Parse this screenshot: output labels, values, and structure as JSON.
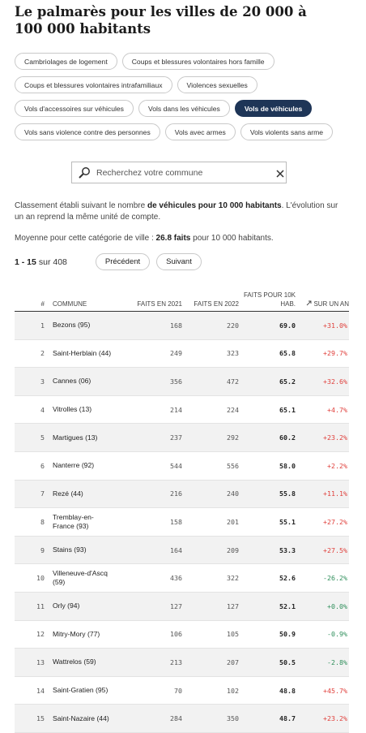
{
  "header": {
    "title": "Le palmarès pour les villes de 20 000 à 100 000 habitants"
  },
  "filters": [
    [
      {
        "label": "Cambriolages de logement",
        "active": false
      },
      {
        "label": "Coups et blessures volontaires hors famille",
        "active": false
      }
    ],
    [
      {
        "label": "Coups et blessures volontaires intrafamiliaux",
        "active": false
      },
      {
        "label": "Violences sexuelles",
        "active": false
      }
    ],
    [
      {
        "label": "Vols d'accessoires sur véhicules",
        "active": false
      },
      {
        "label": "Vols dans les véhicules",
        "active": false
      },
      {
        "label": "Vols de véhicules",
        "active": true
      }
    ],
    [
      {
        "label": "Vols sans violence contre des personnes",
        "active": false
      },
      {
        "label": "Vols avec armes",
        "active": false
      },
      {
        "label": "Vols violents sans arme",
        "active": false
      }
    ]
  ],
  "search": {
    "placeholder": "Recherchez votre commune"
  },
  "intro": [
    {
      "text": "Classement établi suivant le nombre ",
      "bold": false
    },
    {
      "text": "de véhicules pour 10 000 habitants",
      "bold": true
    },
    {
      "text": ". L'évolution sur un an reprend la même unité de compte.",
      "bold": false
    }
  ],
  "average": [
    {
      "text": "Moyenne pour cette catégorie de ville : ",
      "bold": false
    },
    {
      "text": "26.8 faits",
      "bold": true
    },
    {
      "text": " pour 10 000 habitants.",
      "bold": false
    }
  ],
  "pagination": {
    "range": "1 - 15",
    "total": "sur 408",
    "prev": "Précédent",
    "next": "Suivant"
  },
  "table": {
    "columns": [
      "#",
      "COMMUNE",
      "FAITS EN 2021",
      "FAITS EN 2022",
      "FAITS POUR 10K HAB.",
      "SUR UN AN"
    ],
    "rows": [
      [
        "1",
        "Bezons (95)",
        "168",
        "220",
        "69.0",
        "+31.0%"
      ],
      [
        "2",
        "Saint-Herblain (44)",
        "249",
        "323",
        "65.8",
        "+29.7%"
      ],
      [
        "3",
        "Cannes (06)",
        "356",
        "472",
        "65.2",
        "+32.6%"
      ],
      [
        "4",
        "Vitrolles (13)",
        "214",
        "224",
        "65.1",
        "+4.7%"
      ],
      [
        "5",
        "Martigues (13)",
        "237",
        "292",
        "60.2",
        "+23.2%"
      ],
      [
        "6",
        "Nanterre (92)",
        "544",
        "556",
        "58.0",
        "+2.2%"
      ],
      [
        "7",
        "Rezé (44)",
        "216",
        "240",
        "55.8",
        "+11.1%"
      ],
      [
        "8",
        "Tremblay-en-France (93)",
        "158",
        "201",
        "55.1",
        "+27.2%"
      ],
      [
        "9",
        "Stains (93)",
        "164",
        "209",
        "53.3",
        "+27.5%"
      ],
      [
        "10",
        "Villeneuve-d'Ascq (59)",
        "436",
        "322",
        "52.6",
        "-26.2%"
      ],
      [
        "11",
        "Orly (94)",
        "127",
        "127",
        "52.1",
        "+0.0%"
      ],
      [
        "12",
        "Mitry-Mory (77)",
        "106",
        "105",
        "50.9",
        "-0.9%"
      ],
      [
        "13",
        "Wattrelos (59)",
        "213",
        "207",
        "50.5",
        "-2.8%"
      ],
      [
        "14",
        "Saint-Gratien (95)",
        "70",
        "102",
        "48.8",
        "+45.7%"
      ],
      [
        "15",
        "Saint-Nazaire (44)",
        "284",
        "350",
        "48.7",
        "+23.2%"
      ]
    ],
    "evolution_colors": [
      "#e0403c",
      "#e0403c",
      "#e0403c",
      "#e0403c",
      "#e0403c",
      "#e0403c",
      "#e0403c",
      "#e0403c",
      "#e0403c",
      "#2f8f5b",
      "#2f8f5b",
      "#2f8f5b",
      "#2f8f5b",
      "#e0403c",
      "#e0403c"
    ]
  }
}
